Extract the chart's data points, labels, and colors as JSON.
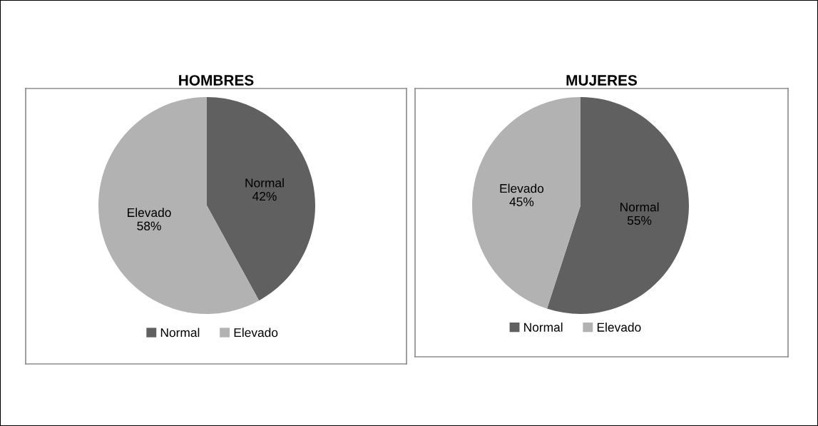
{
  "chart_data": [
    {
      "type": "pie",
      "title": "HOMBRES",
      "categories": [
        "Normal",
        "Elevado"
      ],
      "values": [
        42,
        58
      ],
      "colors": [
        "#606060",
        "#b2b2b2"
      ],
      "value_labels": [
        "Normal\n42%",
        "Elevado\n58%"
      ],
      "legend": "bottom"
    },
    {
      "type": "pie",
      "title": "MUJERES",
      "categories": [
        "Normal",
        "Elevado"
      ],
      "values": [
        55,
        45
      ],
      "colors": [
        "#606060",
        "#b2b2b2"
      ],
      "value_labels": [
        "Normal\n55%",
        "Elevado\n45%"
      ],
      "legend": "bottom"
    }
  ]
}
